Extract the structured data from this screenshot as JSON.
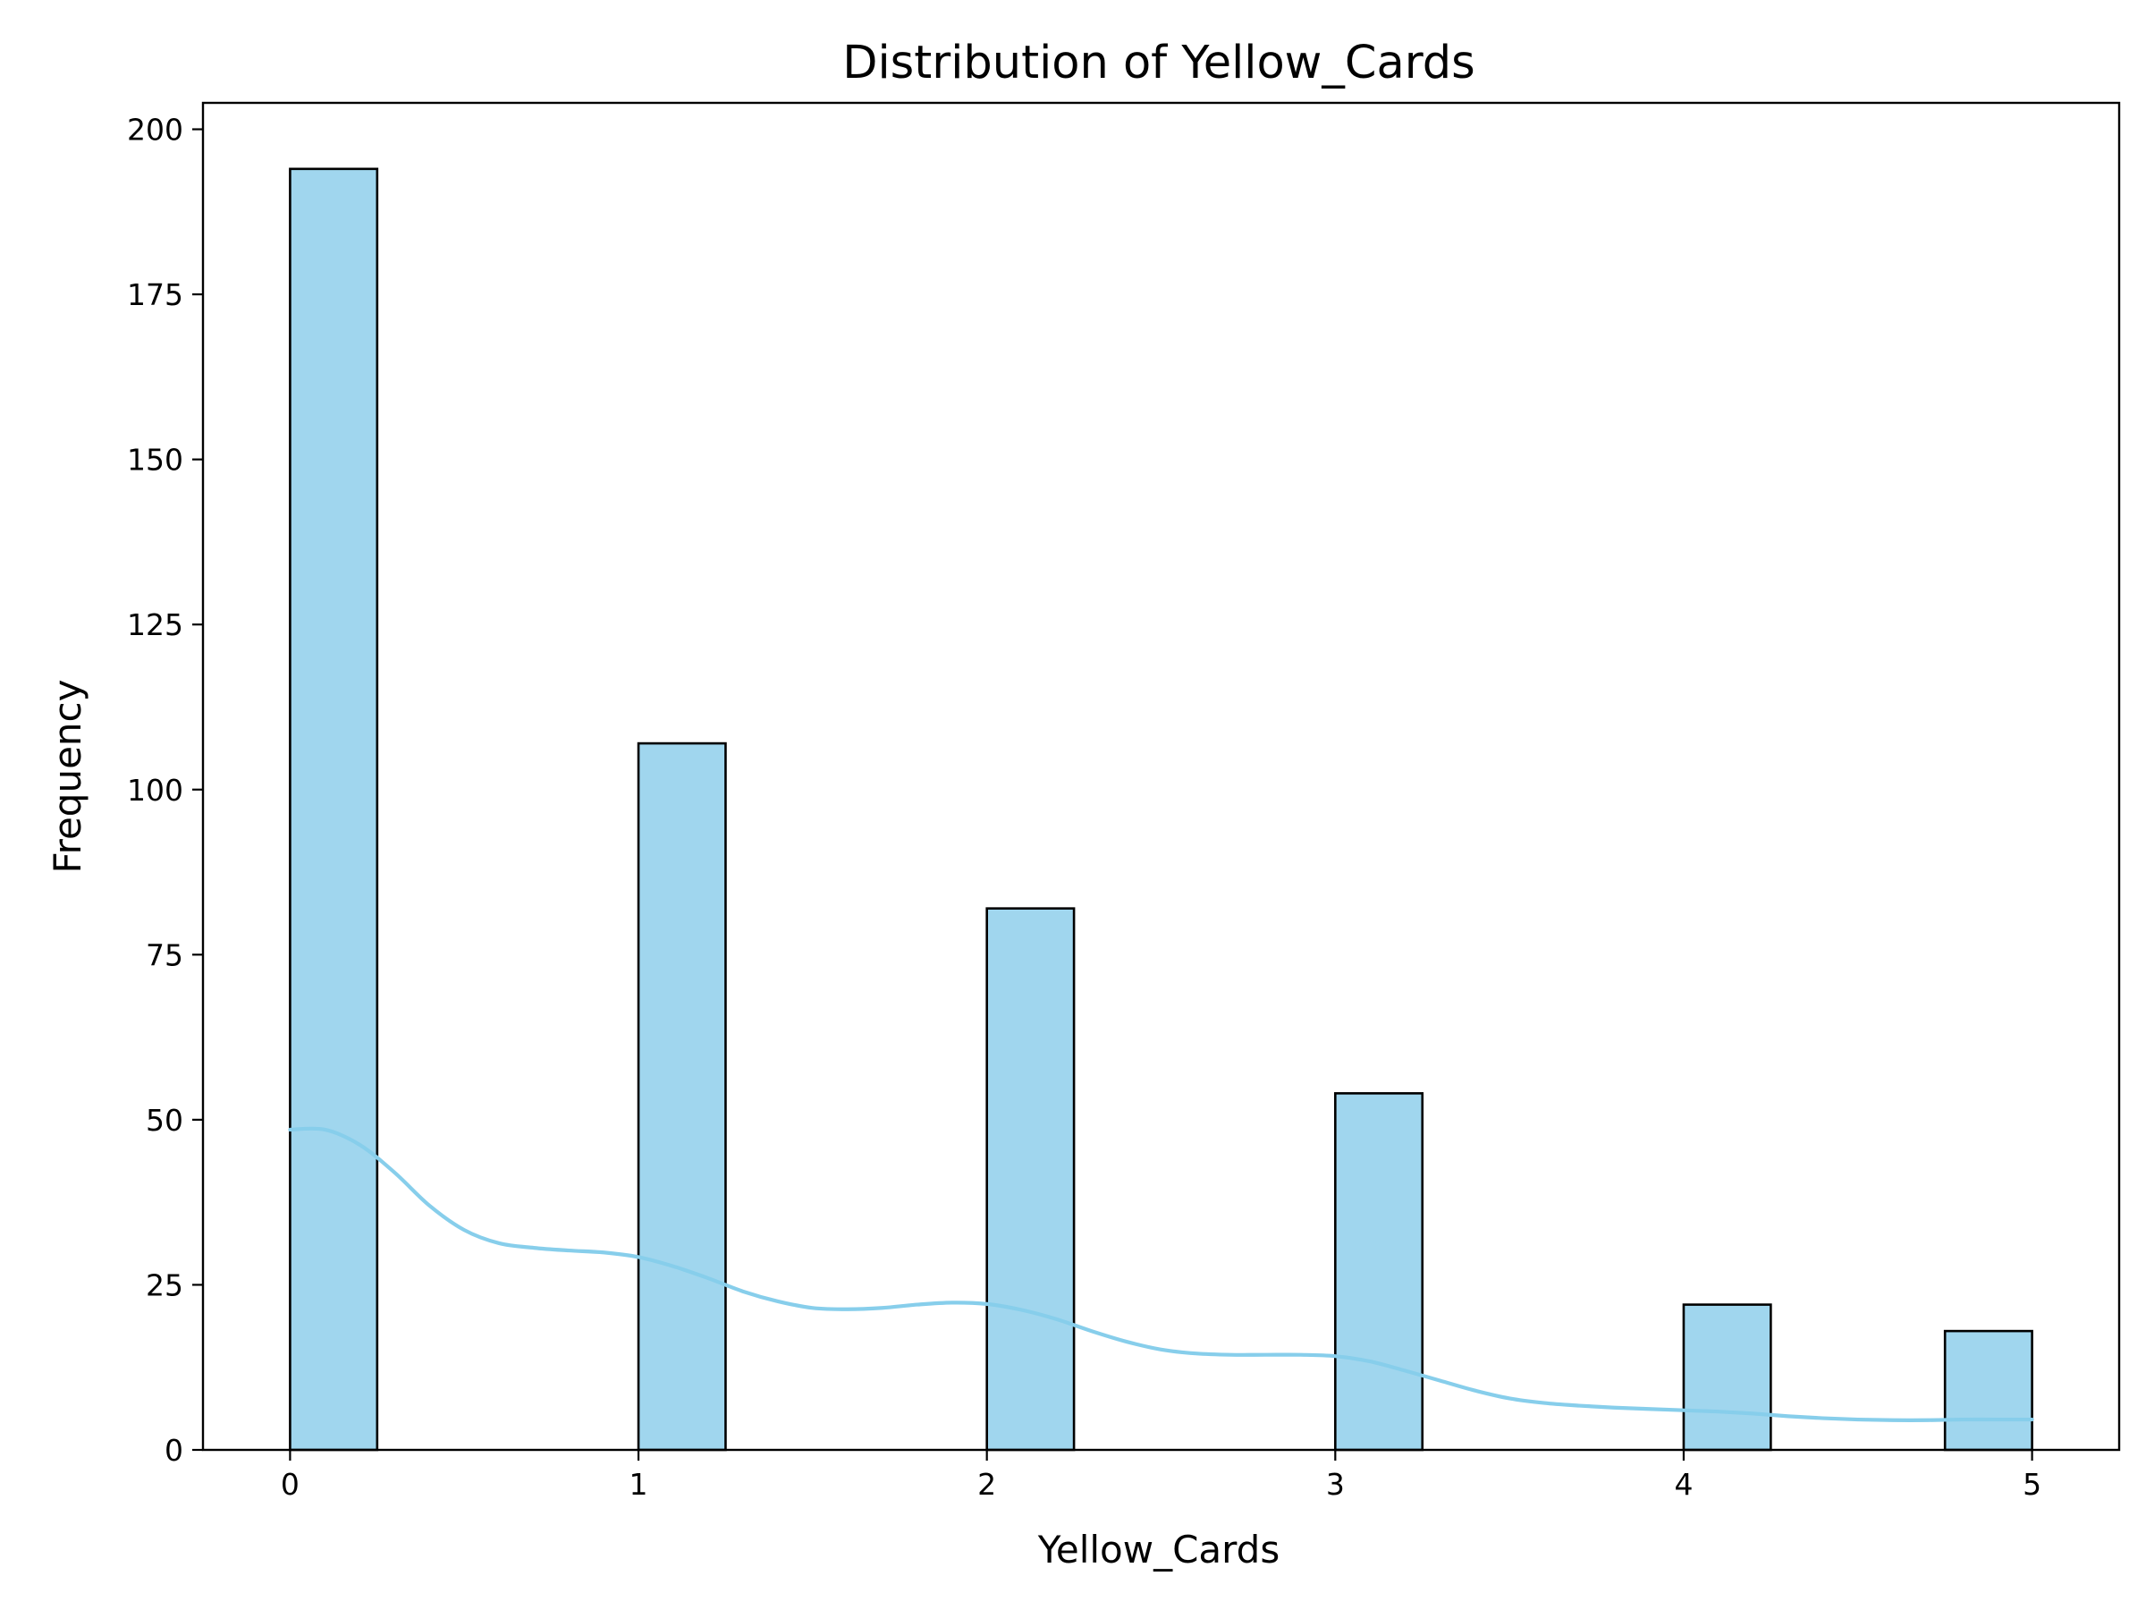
{
  "chart_data": {
    "type": "bar",
    "title": "Distribution of Yellow_Cards",
    "xlabel": "Yellow_Cards",
    "ylabel": "Frequency",
    "xlim": [
      -0.25,
      5.25
    ],
    "ylim": [
      0,
      204
    ],
    "xticks": [
      0,
      1,
      2,
      3,
      4,
      5
    ],
    "yticks": [
      0,
      25,
      50,
      75,
      100,
      125,
      150,
      175,
      200
    ],
    "bin_width": 0.25,
    "bins": [
      {
        "x0": 0.0,
        "x1": 0.25,
        "value": 194
      },
      {
        "x0": 1.0,
        "x1": 1.25,
        "value": 107
      },
      {
        "x0": 2.0,
        "x1": 2.25,
        "value": 82
      },
      {
        "x0": 3.0,
        "x1": 3.25,
        "value": 54
      },
      {
        "x0": 4.0,
        "x1": 4.25,
        "value": 22
      },
      {
        "x0": 4.75,
        "x1": 5.0,
        "value": 18
      }
    ],
    "kde": {
      "x": [
        0,
        0.1,
        0.2,
        0.3,
        0.4,
        0.5,
        0.6,
        0.7,
        0.8,
        0.9,
        1.0,
        1.1,
        1.2,
        1.3,
        1.4,
        1.5,
        1.6,
        1.7,
        1.8,
        1.9,
        2.0,
        2.1,
        2.2,
        2.3,
        2.4,
        2.5,
        2.6,
        2.7,
        2.8,
        2.9,
        3.0,
        3.1,
        3.2,
        3.3,
        3.4,
        3.5,
        3.6,
        3.7,
        3.8,
        3.9,
        4.0,
        4.1,
        4.2,
        4.3,
        4.4,
        4.5,
        4.6,
        4.7,
        4.8,
        4.9,
        5.0
      ],
      "y": [
        48.5,
        48.5,
        46.2,
        42.0,
        37.0,
        33.3,
        31.3,
        30.6,
        30.2,
        29.9,
        29.2,
        27.8,
        26.0,
        24.0,
        22.5,
        21.5,
        21.3,
        21.5,
        22.0,
        22.3,
        22.1,
        21.2,
        19.8,
        18.0,
        16.4,
        15.2,
        14.6,
        14.4,
        14.4,
        14.4,
        14.2,
        13.4,
        12.0,
        10.5,
        9.0,
        7.8,
        7.1,
        6.7,
        6.4,
        6.2,
        6.0,
        5.8,
        5.5,
        5.1,
        4.8,
        4.6,
        4.5,
        4.5,
        4.6,
        4.6,
        4.6
      ]
    },
    "colors": {
      "bar_fill": "#a0d6ee",
      "bar_edge": "#000000",
      "kde_line": "#87ceeb"
    },
    "grid": false,
    "legend": "none"
  }
}
